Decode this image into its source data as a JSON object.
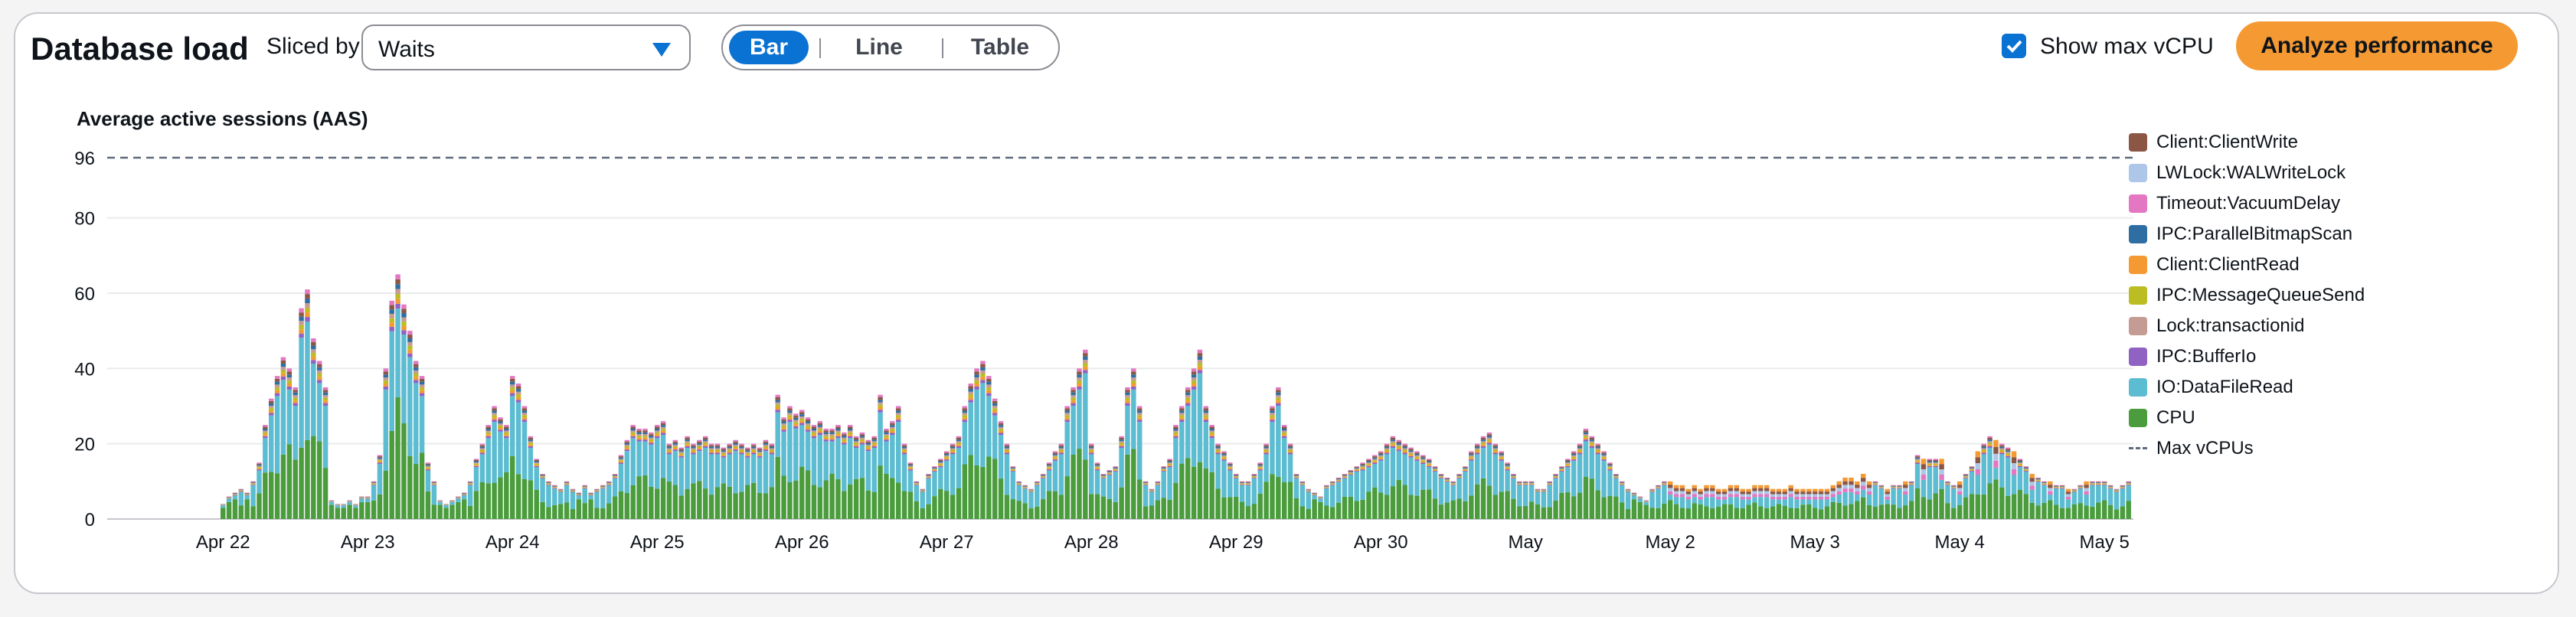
{
  "header": {
    "title": "Database load",
    "sliced_by_label": "Sliced by",
    "sliced_by_value": "Waits",
    "view_options": [
      "Bar",
      "Line",
      "Table"
    ],
    "selected_view": "Bar",
    "show_max_label": "Show max vCPU",
    "show_max_checked": true,
    "analyze_label": "Analyze performance"
  },
  "colors": {
    "accent": "#0972d3",
    "analyze_button": "#f59a33"
  },
  "chart_data": {
    "type": "bar",
    "stacked": true,
    "title": "Average active sessions (AAS)",
    "ylim": [
      0,
      96
    ],
    "y_ticks": [
      0,
      20,
      40,
      60,
      80,
      96
    ],
    "x_tick_labels": [
      "Apr 22",
      "Apr 23",
      "Apr 24",
      "Apr 25",
      "Apr 26",
      "Apr 27",
      "Apr 28",
      "Apr 29",
      "Apr 30",
      "May",
      "May 2",
      "May 3",
      "May 4",
      "May 5"
    ],
    "x_range_days": [
      -0.8,
      13.2
    ],
    "max_vcpu": {
      "name": "Max vCPUs",
      "value": 96,
      "style": "dashed"
    },
    "grid": "horizontal",
    "legend_position": "right",
    "series": [
      {
        "name": "Client:ClientWrite",
        "color": "#8b5744"
      },
      {
        "name": "LWLock:WALWriteLock",
        "color": "#aec7e8"
      },
      {
        "name": "Timeout:VacuumDelay",
        "color": "#e377c2"
      },
      {
        "name": "IPC:ParallelBitmapScan",
        "color": "#2f6ea3"
      },
      {
        "name": "Client:ClientRead",
        "color": "#f59a33"
      },
      {
        "name": "IPC:MessageQueueSend",
        "color": "#bcbd22"
      },
      {
        "name": "Lock:transactionid",
        "color": "#c49c94"
      },
      {
        "name": "IPC:BufferIo",
        "color": "#8f62c4"
      },
      {
        "name": "IO:DataFileRead",
        "color": "#5cbcd1"
      },
      {
        "name": "CPU",
        "color": "#4a9c3c"
      }
    ],
    "legend_extra": "Max vCPUs",
    "bar_totals_by_day": [
      [
        4,
        6,
        7,
        8,
        7,
        10,
        15,
        25,
        32,
        38,
        43,
        40,
        35,
        56,
        61,
        48,
        42,
        35,
        5,
        4,
        4,
        5,
        4,
        6
      ],
      [
        6,
        10,
        17,
        40,
        58,
        65,
        57,
        50,
        42,
        38,
        15,
        10,
        5,
        4,
        5,
        6,
        7,
        10,
        16,
        20,
        25,
        30,
        27,
        25
      ],
      [
        38,
        36,
        30,
        22,
        16,
        12,
        10,
        9,
        8,
        10,
        8,
        7,
        9,
        7,
        8,
        9,
        10,
        12,
        17,
        21,
        25,
        24,
        24,
        23
      ],
      [
        25,
        26,
        20,
        21,
        19,
        22,
        20,
        21,
        22,
        20,
        20,
        19,
        20,
        21,
        20,
        19,
        20,
        19,
        21,
        20,
        33,
        27,
        30,
        28
      ],
      [
        29,
        27,
        25,
        26,
        24,
        24,
        25,
        23,
        25,
        22,
        23,
        21,
        22,
        33,
        24,
        26,
        30,
        20,
        15,
        10,
        8,
        12,
        14,
        16
      ],
      [
        18,
        20,
        22,
        30,
        36,
        40,
        42,
        38,
        32,
        26,
        20,
        14,
        10,
        9,
        8,
        10,
        12,
        15,
        18,
        20,
        30,
        35,
        40,
        45
      ],
      [
        20,
        15,
        12,
        13,
        14,
        22,
        35,
        40,
        30,
        10,
        8,
        10,
        14,
        16,
        25,
        30,
        35,
        40,
        45,
        30,
        25,
        20,
        18,
        15
      ],
      [
        12,
        10,
        10,
        12,
        15,
        20,
        30,
        35,
        25,
        20,
        12,
        10,
        8,
        7,
        6,
        9,
        10,
        11,
        12,
        13,
        14,
        15,
        16,
        17
      ],
      [
        18,
        20,
        22,
        21,
        20,
        19,
        18,
        17,
        16,
        14,
        12,
        11,
        10,
        12,
        14,
        18,
        20,
        22,
        23,
        20,
        18,
        15,
        12,
        10
      ],
      [
        10,
        10,
        8,
        8,
        10,
        12,
        14,
        16,
        18,
        20,
        24,
        22,
        20,
        18,
        15,
        12,
        10,
        8,
        7,
        6,
        5,
        8,
        9,
        10
      ],
      [
        10,
        9,
        9,
        8,
        9,
        8,
        9,
        9,
        8,
        8,
        9,
        9,
        8,
        8,
        9,
        9,
        9,
        8,
        8,
        8,
        9,
        8,
        8,
        8
      ],
      [
        8,
        8,
        8,
        9,
        10,
        11,
        11,
        10,
        12,
        10,
        10,
        9,
        8,
        9,
        9,
        10,
        10,
        17,
        16,
        16,
        16,
        16,
        10,
        9
      ],
      [
        10,
        12,
        14,
        18,
        20,
        22,
        21,
        20,
        19,
        18,
        16,
        14,
        12,
        11,
        10,
        10,
        9,
        9,
        8,
        8,
        9,
        10,
        10,
        10
      ],
      [
        10,
        9,
        8,
        9,
        10
      ]
    ]
  }
}
